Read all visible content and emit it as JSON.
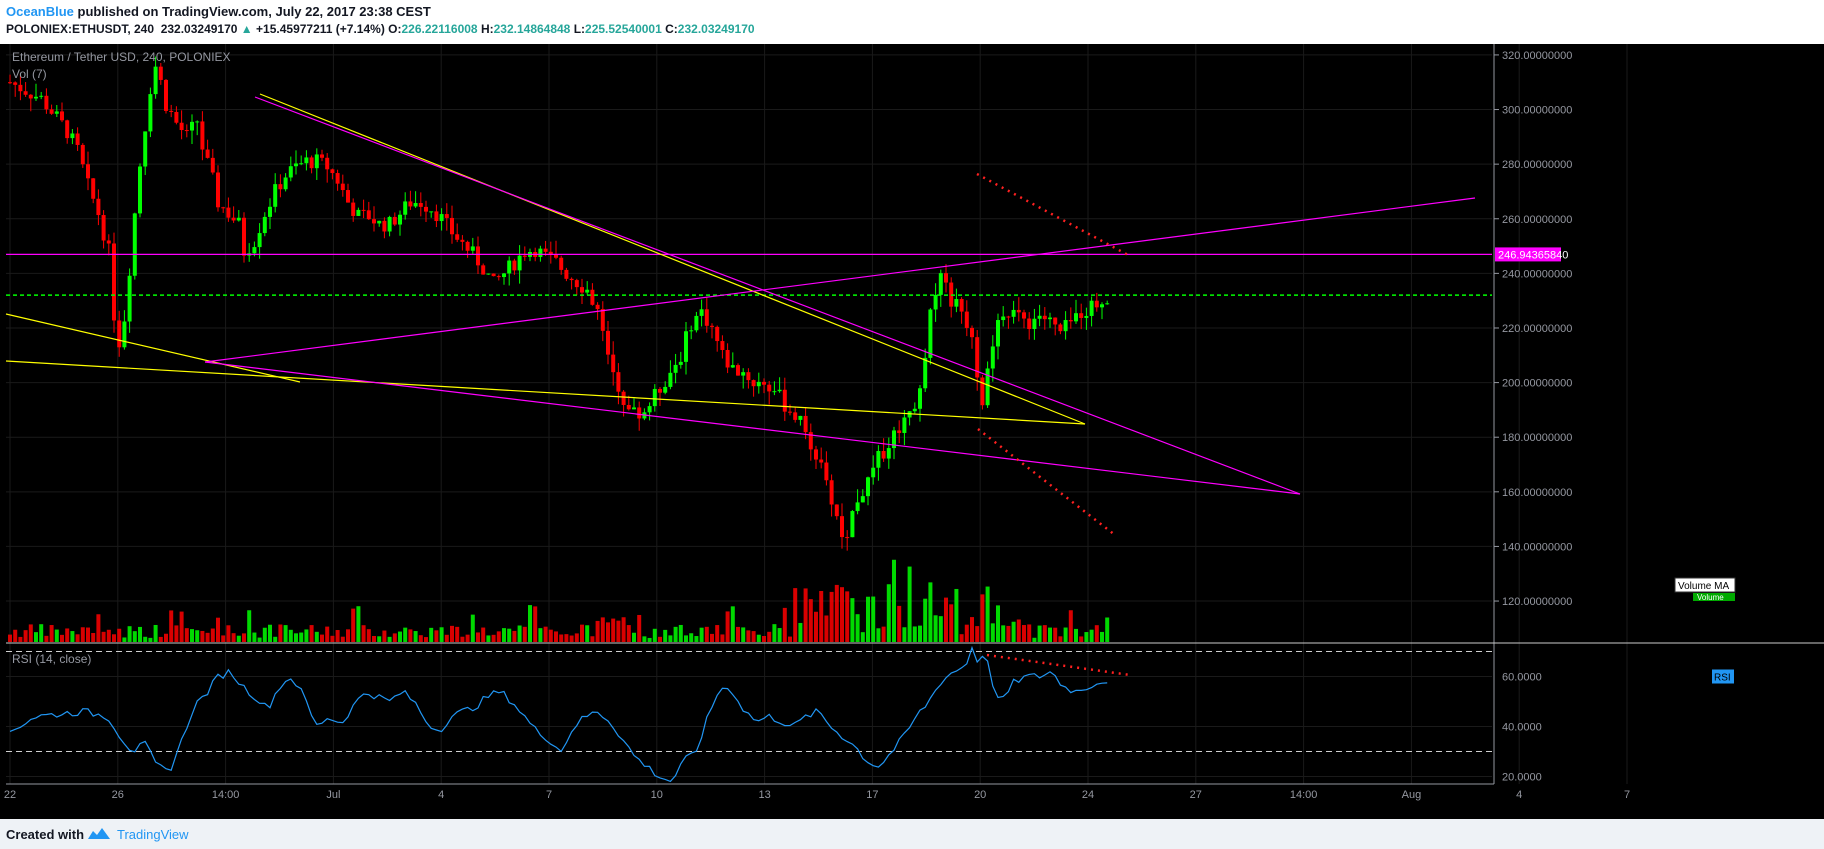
{
  "header": {
    "author": "OceanBlue",
    "published": "published on TradingView.com, July 22, 2017 23:38 CEST",
    "symbol": "POLONIEX:ETHUSDT, 240",
    "last": "232.03249170",
    "change": "+15.45977211 (+7.14%)",
    "o_label": "O:",
    "o": "226.22116008",
    "h_label": "H:",
    "h": "232.14864848",
    "l_label": "L:",
    "l": "225.52540001",
    "c_label": "C:",
    "c": "232.03249170"
  },
  "footer": {
    "created": "Created with",
    "brand": "TradingView"
  },
  "colors": {
    "bg": "#000000",
    "up": "#00ff00",
    "down": "#ff0000",
    "trend_magenta": "#ff00ff",
    "trend_yellow": "#ffff00",
    "rsi_line": "#2196f3",
    "axis_text": "#9598a1"
  },
  "chart_data": [
    {
      "type": "candlestick",
      "title": "Ethereum / Tether USD, 240, POLONIEX",
      "volume_legend": "Vol (7)",
      "volume_ma_label": "Volume MA",
      "volume_ma_sub": "Volume",
      "price_axis": {
        "ticks": [
          "320.00000000",
          "300.00000000",
          "280.00000000",
          "260.00000000",
          "240.00000000",
          "220.00000000",
          "200.00000000",
          "180.00000000",
          "160.00000000",
          "140.00000000",
          "120.00000000"
        ],
        "range": [
          105,
          324
        ]
      },
      "time_axis": [
        "22",
        "26",
        "14:00",
        "Jul",
        "4",
        "7",
        "10",
        "13",
        "17",
        "20",
        "24",
        "27",
        "14:00",
        "Aug",
        "4",
        "7"
      ],
      "horizontal_level": {
        "value": 246.9436584,
        "label": "246.94365840"
      },
      "last_price_level": 232.03,
      "price_path": [
        [
          0,
          310
        ],
        [
          3,
          307
        ],
        [
          6,
          304
        ],
        [
          9,
          297
        ],
        [
          11,
          292
        ],
        [
          13,
          285
        ],
        [
          15,
          272
        ],
        [
          17,
          262
        ],
        [
          19,
          248
        ],
        [
          20,
          225
        ],
        [
          21,
          215
        ],
        [
          22,
          224
        ],
        [
          23,
          242
        ],
        [
          24,
          262
        ],
        [
          25,
          280
        ],
        [
          26,
          294
        ],
        [
          27,
          308
        ],
        [
          28,
          316
        ],
        [
          29,
          310
        ],
        [
          30,
          302
        ],
        [
          32,
          295
        ],
        [
          34,
          290
        ],
        [
          36,
          296
        ],
        [
          37,
          286
        ],
        [
          39,
          274
        ],
        [
          40,
          266
        ],
        [
          42,
          262
        ],
        [
          44,
          258
        ],
        [
          45,
          248
        ],
        [
          47,
          252
        ],
        [
          49,
          262
        ],
        [
          51,
          270
        ],
        [
          53,
          276
        ],
        [
          55,
          279
        ],
        [
          57,
          281
        ],
        [
          59,
          281
        ],
        [
          61,
          279
        ],
        [
          63,
          274
        ],
        [
          65,
          266
        ],
        [
          67,
          261
        ],
        [
          69,
          261
        ],
        [
          71,
          258
        ],
        [
          73,
          258
        ],
        [
          75,
          262
        ],
        [
          77,
          266
        ],
        [
          79,
          266
        ],
        [
          81,
          264
        ],
        [
          83,
          260
        ],
        [
          85,
          255
        ],
        [
          87,
          251
        ],
        [
          89,
          247
        ],
        [
          91,
          242
        ],
        [
          93,
          236
        ],
        [
          95,
          240
        ],
        [
          97,
          244
        ],
        [
          99,
          248
        ],
        [
          101,
          249
        ],
        [
          103,
          246
        ],
        [
          105,
          244
        ],
        [
          107,
          240
        ],
        [
          109,
          237
        ],
        [
          111,
          234
        ],
        [
          113,
          226
        ],
        [
          114,
          218
        ],
        [
          115,
          208
        ],
        [
          117,
          198
        ],
        [
          119,
          190
        ],
        [
          121,
          188
        ],
        [
          123,
          192
        ],
        [
          125,
          198
        ],
        [
          127,
          204
        ],
        [
          129,
          210
        ],
        [
          131,
          222
        ],
        [
          133,
          226
        ],
        [
          135,
          220
        ],
        [
          137,
          210
        ],
        [
          139,
          205
        ],
        [
          141,
          204
        ],
        [
          143,
          200
        ],
        [
          145,
          200
        ],
        [
          147,
          197
        ],
        [
          149,
          192
        ],
        [
          151,
          188
        ],
        [
          153,
          182
        ],
        [
          155,
          174
        ],
        [
          157,
          162
        ],
        [
          159,
          152
        ],
        [
          160,
          143
        ],
        [
          161,
          145
        ],
        [
          162,
          152
        ],
        [
          163,
          158
        ],
        [
          165,
          163
        ],
        [
          167,
          172
        ],
        [
          169,
          178
        ],
        [
          171,
          184
        ],
        [
          173,
          190
        ],
        [
          175,
          196
        ],
        [
          176,
          212
        ],
        [
          177,
          224
        ],
        [
          178,
          235
        ],
        [
          179,
          240
        ],
        [
          180,
          235
        ],
        [
          181,
          230
        ],
        [
          183,
          226
        ],
        [
          185,
          218
        ],
        [
          186,
          204
        ],
        [
          187,
          194
        ],
        [
          188,
          205
        ],
        [
          189,
          212
        ],
        [
          190,
          220
        ],
        [
          192,
          226
        ],
        [
          194,
          224
        ],
        [
          196,
          222
        ],
        [
          198,
          225
        ],
        [
          200,
          222
        ],
        [
          202,
          218
        ],
        [
          204,
          222
        ],
        [
          206,
          226
        ],
        [
          208,
          228
        ],
        [
          210,
          230
        ],
        [
          211,
          232
        ]
      ],
      "candle_count": 212
    },
    {
      "type": "line",
      "title": "RSI (14, close)",
      "badge": "RSI",
      "ticks": [
        "60.0000",
        "40.0000",
        "20.0000"
      ],
      "range": [
        17,
        73
      ],
      "upper_band": 70,
      "lower_band": 30,
      "values_path": [
        [
          0,
          38
        ],
        [
          4,
          44
        ],
        [
          8,
          45
        ],
        [
          12,
          46
        ],
        [
          16,
          44
        ],
        [
          18,
          36
        ],
        [
          20,
          30
        ],
        [
          22,
          33
        ],
        [
          24,
          24
        ],
        [
          26,
          22
        ],
        [
          28,
          34
        ],
        [
          30,
          48
        ],
        [
          32,
          53
        ],
        [
          34,
          60
        ],
        [
          36,
          62
        ],
        [
          38,
          56
        ],
        [
          40,
          52
        ],
        [
          42,
          47
        ],
        [
          44,
          56
        ],
        [
          46,
          60
        ],
        [
          48,
          52
        ],
        [
          50,
          40
        ],
        [
          52,
          44
        ],
        [
          54,
          41
        ],
        [
          56,
          48
        ],
        [
          58,
          54
        ],
        [
          60,
          52
        ],
        [
          62,
          50
        ],
        [
          64,
          54
        ],
        [
          66,
          50
        ],
        [
          68,
          42
        ],
        [
          70,
          38
        ],
        [
          72,
          44
        ],
        [
          74,
          46
        ],
        [
          76,
          48
        ],
        [
          78,
          52
        ],
        [
          80,
          54
        ],
        [
          82,
          50
        ],
        [
          84,
          44
        ],
        [
          86,
          38
        ],
        [
          88,
          35
        ],
        [
          90,
          30
        ],
        [
          92,
          40
        ],
        [
          94,
          44
        ],
        [
          96,
          46
        ],
        [
          98,
          42
        ],
        [
          100,
          35
        ],
        [
          102,
          28
        ],
        [
          104,
          24
        ],
        [
          106,
          20
        ],
        [
          108,
          18
        ],
        [
          110,
          26
        ],
        [
          112,
          30
        ],
        [
          114,
          44
        ],
        [
          116,
          56
        ],
        [
          118,
          54
        ],
        [
          120,
          46
        ],
        [
          122,
          42
        ],
        [
          124,
          44
        ],
        [
          126,
          42
        ],
        [
          128,
          40
        ],
        [
          130,
          44
        ],
        [
          132,
          46
        ],
        [
          134,
          40
        ],
        [
          136,
          36
        ],
        [
          138,
          32
        ],
        [
          140,
          26
        ],
        [
          142,
          24
        ],
        [
          144,
          30
        ],
        [
          146,
          36
        ],
        [
          148,
          44
        ],
        [
          150,
          50
        ],
        [
          152,
          58
        ],
        [
          154,
          62
        ],
        [
          156,
          64
        ],
        [
          157,
          72
        ],
        [
          158,
          66
        ],
        [
          159,
          70
        ],
        [
          160,
          62
        ],
        [
          161,
          52
        ],
        [
          162,
          50
        ],
        [
          164,
          58
        ],
        [
          166,
          60
        ],
        [
          168,
          60
        ],
        [
          170,
          62
        ],
        [
          172,
          56
        ],
        [
          174,
          54
        ],
        [
          176,
          56
        ],
        [
          178,
          58
        ],
        [
          180,
          59
        ]
      ]
    }
  ]
}
